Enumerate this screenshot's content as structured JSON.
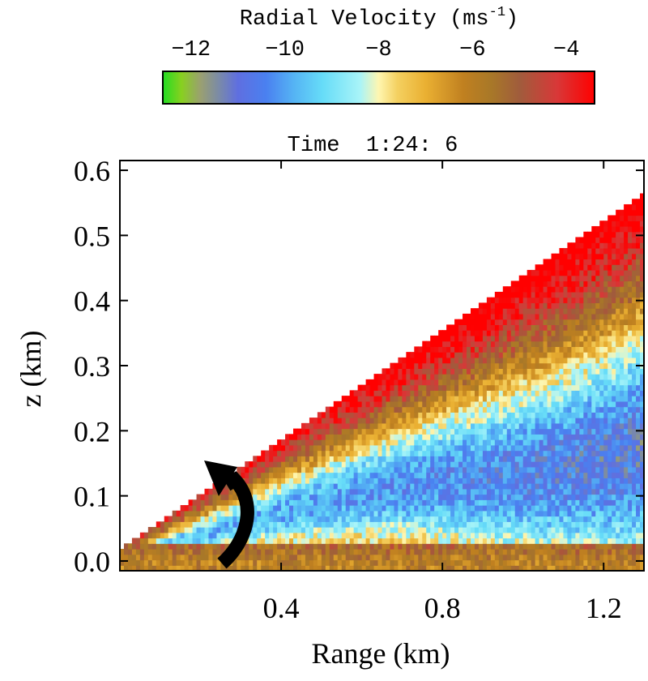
{
  "colorbar": {
    "title": "Radial Velocity (ms",
    "title_exponent": "-1",
    "title_close": ")",
    "ticks": [
      "−12",
      "−10",
      "−8",
      "−6",
      "−4"
    ],
    "tick_values": [
      -12,
      -10,
      -8,
      -6,
      -4
    ],
    "range": [
      -12.6,
      -3.4
    ],
    "stops": [
      {
        "v": -12.6,
        "color": "#22dd22"
      },
      {
        "v": -12.2,
        "color": "#88d020"
      },
      {
        "v": -11.8,
        "color": "#9aa070"
      },
      {
        "v": -11.4,
        "color": "#7a8aa8"
      },
      {
        "v": -11.0,
        "color": "#5f6fe0"
      },
      {
        "v": -10.4,
        "color": "#4a80f0"
      },
      {
        "v": -9.8,
        "color": "#55b4f4"
      },
      {
        "v": -9.2,
        "color": "#66dcf8"
      },
      {
        "v": -8.4,
        "color": "#a8f4f8"
      },
      {
        "v": -8.0,
        "color": "#fff6b0"
      },
      {
        "v": -7.6,
        "color": "#f4d060"
      },
      {
        "v": -7.0,
        "color": "#eab032"
      },
      {
        "v": -6.2,
        "color": "#c08020"
      },
      {
        "v": -5.6,
        "color": "#a87828"
      },
      {
        "v": -5.0,
        "color": "#a05c3c"
      },
      {
        "v": -4.2,
        "color": "#d83838"
      },
      {
        "v": -3.4,
        "color": "#ff0000"
      }
    ]
  },
  "panel_title": "Time  1:24: 6",
  "chart_data": {
    "type": "heatmap",
    "title": "Time  1:24: 6",
    "xlabel": "Range (km)",
    "ylabel": "z (km)",
    "xlim": [
      0.0,
      1.3
    ],
    "ylim": [
      -0.015,
      0.615
    ],
    "x_ticks": [
      0.4,
      0.8,
      1.2
    ],
    "x_tick_labels": [
      "0.4",
      "0.8",
      "1.2"
    ],
    "y_ticks": [
      0.0,
      0.1,
      0.2,
      0.3,
      0.4,
      0.5,
      0.6
    ],
    "y_tick_labels": [
      "0.0",
      "0.1",
      "0.2",
      "0.3",
      "0.4",
      "0.5",
      "0.6"
    ],
    "colorbar_label": "Radial Velocity (ms-1)",
    "colorbar_range": [
      -12.6,
      -3.4
    ],
    "scan_wedge_top_slope_km_per_km": 0.42,
    "velocity_layers": [
      {
        "layer": "near-surface",
        "z_range_km": [
          0.0,
          0.03
        ],
        "velocity_ms": -5.5
      },
      {
        "layer": "jet core",
        "z_range_km": [
          0.08,
          0.2
        ],
        "velocity_ms": -9.5
      },
      {
        "layer": "upper",
        "z_range_km": [
          0.25,
          0.55
        ],
        "velocity_ms": -3.5
      }
    ],
    "annotation": "curved black arrow indicating circulation near range 0.3 km"
  }
}
